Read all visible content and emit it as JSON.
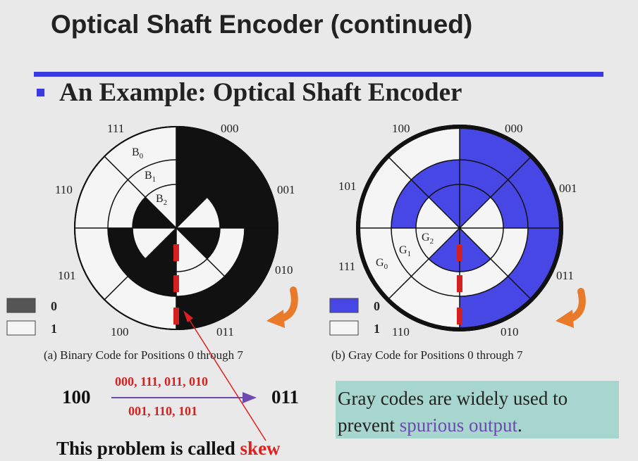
{
  "slide": {
    "title": "Optical Shaft Encoder (continued)",
    "subtitle": "An Example: Optical Shaft Encoder"
  },
  "binary_disk": {
    "caption": "(a) Binary Code for Positions 0 through 7",
    "positions": [
      "000",
      "001",
      "010",
      "011",
      "100",
      "101",
      "110",
      "111"
    ],
    "track_labels": [
      {
        "text": "B",
        "sub": "0"
      },
      {
        "text": "B",
        "sub": "1"
      },
      {
        "text": "B",
        "sub": "2"
      }
    ],
    "legend": [
      {
        "value": "0",
        "color": "#555555"
      },
      {
        "value": "1",
        "color": "#f5f5f5"
      }
    ]
  },
  "gray_disk": {
    "caption": "(b) Gray Code for Positions 0 through 7",
    "positions": [
      "000",
      "001",
      "011",
      "010",
      "110",
      "111",
      "101",
      "100"
    ],
    "track_labels": [
      {
        "text": "G",
        "sub": "0"
      },
      {
        "text": "G",
        "sub": "1"
      },
      {
        "text": "G",
        "sub": "2"
      }
    ],
    "legend": [
      {
        "value": "0",
        "color": "#4747e6"
      },
      {
        "value": "1",
        "color": "#f5f5f5"
      }
    ]
  },
  "transition": {
    "from": "100",
    "to": "011",
    "above_arrow": "000, 111, 011, 010",
    "below_arrow": "001, 110, 101"
  },
  "summary": {
    "before": "Gray codes are widely used to prevent ",
    "highlight": "spurious output",
    "after": "."
  },
  "skew": {
    "text": "This problem is called ",
    "term": "skew"
  },
  "colors": {
    "accent_blue": "#3a3ae0",
    "binary_fill": "#111111",
    "gray_fill": "#4747e6",
    "red": "#d42020",
    "orange": "#e87a2a",
    "arrow_purple": "#6b4bb0",
    "summary_bg": "#a7d6cf"
  },
  "icons": {
    "rotation_arrow": "curved-arrow-icon",
    "bullet": "square-bullet-icon"
  }
}
